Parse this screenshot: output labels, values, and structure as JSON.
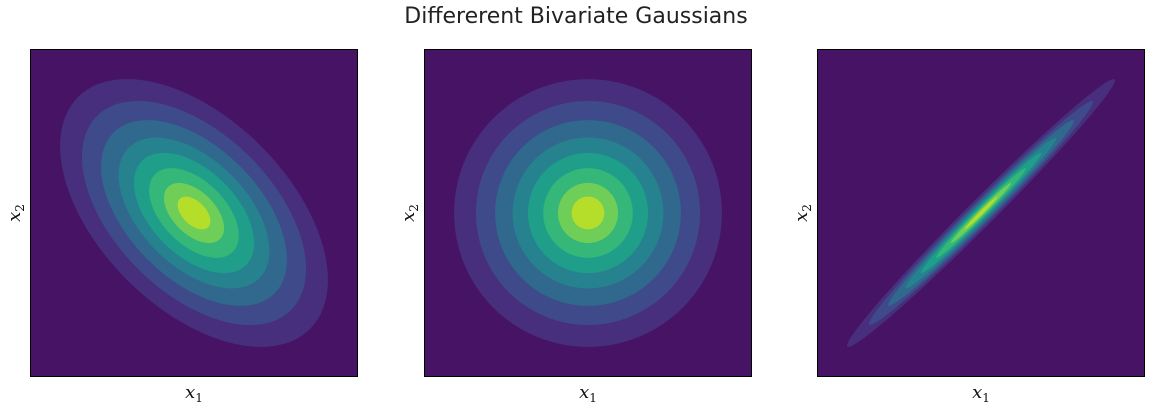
{
  "figure": {
    "title": "Differerent Bivariate Gaussians"
  },
  "colors": {
    "levels": [
      "#471365",
      "#472f7d",
      "#3e4a89",
      "#31688e",
      "#26828e",
      "#1f9e89",
      "#35b779",
      "#6ece58",
      "#b5de2b"
    ],
    "axes": "#000000"
  },
  "chart_data": [
    {
      "type": "heatmap",
      "subtype": "filled-contour",
      "title": "",
      "xlabel": "x",
      "xlabel_sub": "1",
      "ylabel": "x",
      "ylabel_sub": "2",
      "xlim": [
        -3,
        3
      ],
      "ylim": [
        -3,
        3
      ],
      "xticks": [],
      "yticks": [],
      "mean": [
        0,
        0
      ],
      "covariance": [
        [
          1,
          -0.5
        ],
        [
          -0.5,
          1
        ]
      ],
      "levels": 8,
      "grid": false
    },
    {
      "type": "heatmap",
      "subtype": "filled-contour",
      "title": "",
      "xlabel": "x",
      "xlabel_sub": "1",
      "ylabel": "x",
      "ylabel_sub": "2",
      "xlim": [
        -3,
        3
      ],
      "ylim": [
        -3,
        3
      ],
      "xticks": [],
      "yticks": [],
      "mean": [
        0,
        0
      ],
      "covariance": [
        [
          1,
          0
        ],
        [
          0,
          1
        ]
      ],
      "levels": 8,
      "grid": false
    },
    {
      "type": "heatmap",
      "subtype": "filled-contour",
      "title": "",
      "xlabel": "x",
      "xlabel_sub": "1",
      "ylabel": "x",
      "ylabel_sub": "2",
      "xlim": [
        -3,
        3
      ],
      "ylim": [
        -3,
        3
      ],
      "xticks": [],
      "yticks": [],
      "mean": [
        0,
        0
      ],
      "covariance": [
        [
          1,
          0.99
        ],
        [
          0.99,
          1
        ]
      ],
      "levels": 8,
      "grid": false
    }
  ]
}
